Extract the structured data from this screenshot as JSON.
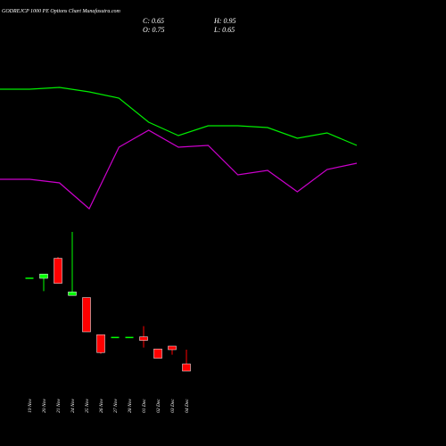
{
  "chart_data": [
    {
      "type": "candlestick",
      "title": "GODREJCP 1000 PE Options Chart Munafasutra.com",
      "info": [
        "C: 0.65",
        "H: 0.95",
        "O: 0.75",
        "L: 0.65"
      ],
      "categories": [
        "19 Nov",
        "20 Nov",
        "21 Nov",
        "24 Nov",
        "25 Nov",
        "26 Nov",
        "27 Nov",
        "28 Nov",
        "01 Dec",
        "02 Dec",
        "03 Dec",
        "04 Dec"
      ],
      "open": [
        1.96,
        1.95,
        2.23,
        1.71,
        1.68,
        1.16,
        1.13,
        1.13,
        1.13,
        0.96,
        1.0,
        0.75
      ],
      "high": [
        1.96,
        2.01,
        2.25,
        2.6,
        1.68,
        1.16,
        1.13,
        1.13,
        1.28,
        0.96,
        1.0,
        0.95
      ],
      "low": [
        1.96,
        1.77,
        1.88,
        1.71,
        1.2,
        0.89,
        1.13,
        1.13,
        0.98,
        0.83,
        0.88,
        0.65
      ],
      "close": [
        1.96,
        2.01,
        1.88,
        1.76,
        1.2,
        0.91,
        1.13,
        1.13,
        1.08,
        0.83,
        0.95,
        0.65
      ],
      "up_color": "#00ff00",
      "down_color": "#ff0000",
      "ylim": [
        0.5,
        2.7
      ]
    },
    {
      "type": "line",
      "series": [
        {
          "color": "#00ee00",
          "values": [
            75,
            75,
            76,
            73.5,
            70,
            56.5,
            49,
            54.5,
            54.5,
            53.5,
            47.5,
            50.5,
            43.5
          ]
        },
        {
          "color": "#cc00cc",
          "values": [
            24.5,
            24.5,
            22.5,
            8,
            42.5,
            52,
            42.5,
            43.5,
            27,
            29.5,
            17.5,
            30,
            33.5
          ]
        }
      ],
      "ylim": [
        0,
        100
      ]
    }
  ]
}
